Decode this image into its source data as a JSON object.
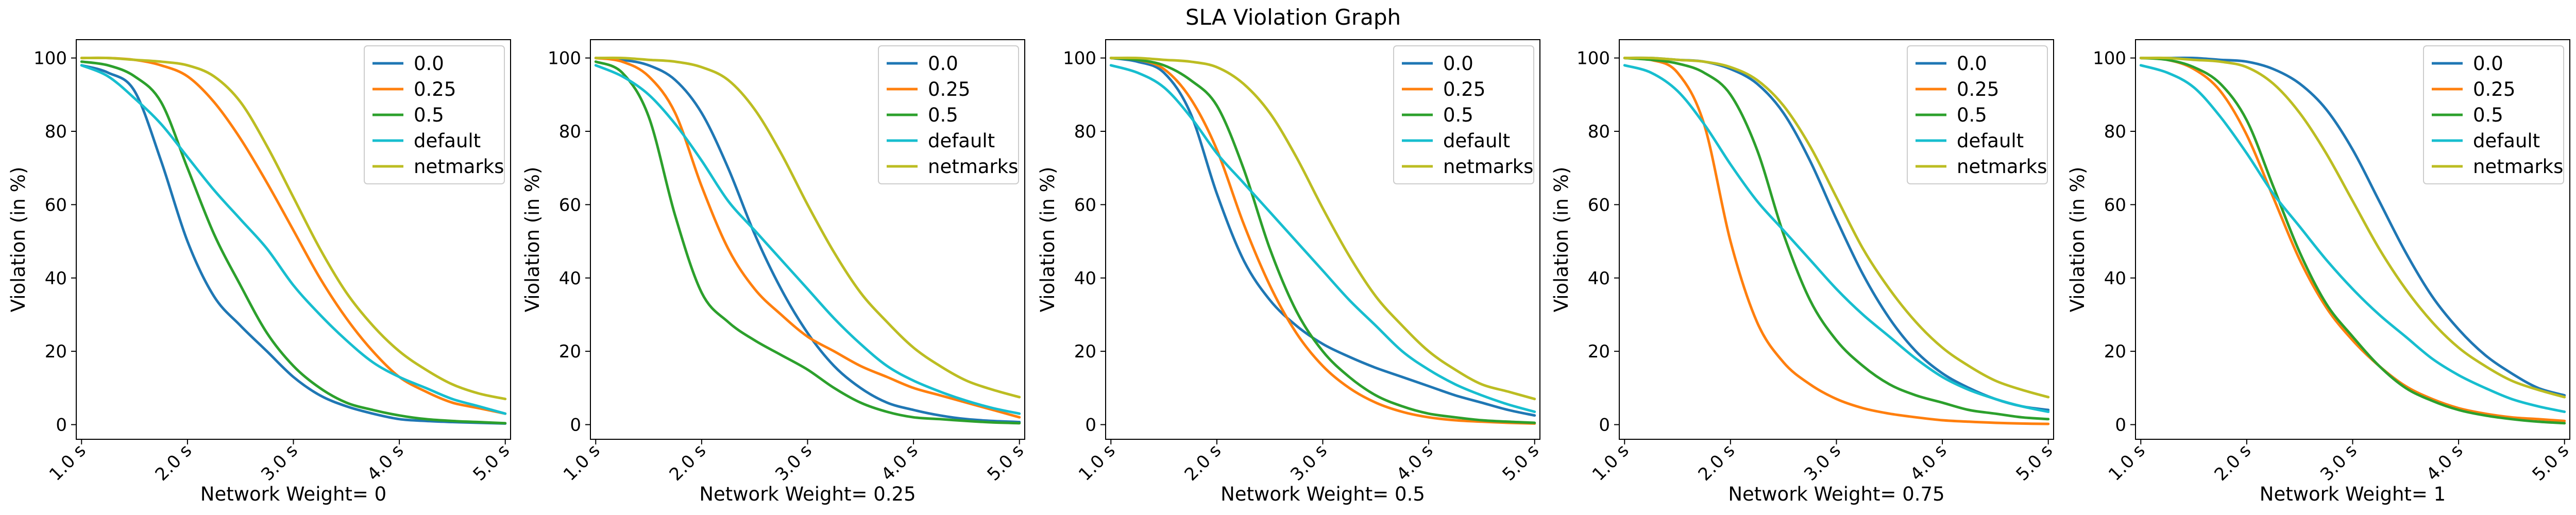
{
  "figure": {
    "title": "SLA Violation Graph"
  },
  "chart_data": [
    {
      "type": "line",
      "title": "",
      "xlabel": "Network Weight= 0",
      "ylabel": "Violation (in %)",
      "x": [
        1.0,
        1.25,
        1.5,
        1.75,
        2.0,
        2.25,
        2.5,
        2.75,
        3.0,
        3.25,
        3.5,
        3.75,
        4.0,
        4.25,
        4.5,
        4.75,
        5.0
      ],
      "xticks": [
        "1.0 s",
        "2.0 s",
        "3.0 s",
        "4.0 s",
        "5.0 s"
      ],
      "xtick_values": [
        1,
        2,
        3,
        4,
        5
      ],
      "yticks": [
        0,
        20,
        40,
        60,
        80,
        100
      ],
      "xlim": [
        0.95,
        5.05
      ],
      "ylim": [
        -4,
        105
      ],
      "legend": "top-right",
      "grid": false,
      "series": [
        {
          "name": "0.0",
          "color": "#1f77b4",
          "values": [
            98,
            96,
            91,
            72,
            50,
            35,
            27,
            20,
            13,
            8,
            5,
            3,
            1.5,
            1,
            0.7,
            0.5,
            0.3
          ]
        },
        {
          "name": "0.25",
          "color": "#ff7f0e",
          "values": [
            100,
            100,
            99.5,
            98,
            95,
            88,
            78,
            66,
            53,
            40,
            29,
            20,
            13,
            9,
            6,
            4.5,
            3
          ]
        },
        {
          "name": "0.5",
          "color": "#2ca02c",
          "values": [
            99,
            98,
            95,
            88,
            70,
            52,
            38,
            25,
            16,
            10,
            6,
            4,
            2.5,
            1.5,
            1,
            0.7,
            0.4
          ]
        },
        {
          "name": "default",
          "color": "#17becf",
          "values": [
            98,
            95,
            89,
            82,
            73,
            64,
            56,
            48,
            38,
            30,
            23,
            17,
            13,
            10,
            7,
            5,
            3
          ]
        },
        {
          "name": "netmarks",
          "color": "#bcbd22",
          "values": [
            100,
            100,
            99.5,
            99,
            98,
            95,
            88,
            76,
            62,
            48,
            36,
            27,
            20,
            15,
            11,
            8.5,
            7
          ]
        }
      ]
    },
    {
      "type": "line",
      "title": "",
      "xlabel": "Network Weight= 0.25",
      "ylabel": "Violation (in %)",
      "x": [
        1.0,
        1.25,
        1.5,
        1.75,
        2.0,
        2.25,
        2.5,
        2.75,
        3.0,
        3.25,
        3.5,
        3.75,
        4.0,
        4.25,
        4.5,
        4.75,
        5.0
      ],
      "xticks": [
        "1.0 s",
        "2.0 s",
        "3.0 s",
        "4.0 s",
        "5.0 s"
      ],
      "xtick_values": [
        1,
        2,
        3,
        4,
        5
      ],
      "yticks": [
        0,
        20,
        40,
        60,
        80,
        100
      ],
      "xlim": [
        0.95,
        5.05
      ],
      "ylim": [
        -4,
        105
      ],
      "legend": "top-right",
      "grid": false,
      "series": [
        {
          "name": "0.0",
          "color": "#1f77b4",
          "values": [
            100,
            99.5,
            98,
            94,
            85,
            70,
            52,
            37,
            25,
            16,
            10,
            6,
            4,
            2.5,
            1.5,
            1,
            0.7
          ]
        },
        {
          "name": "0.25",
          "color": "#ff7f0e",
          "values": [
            100,
            99,
            95,
            85,
            65,
            48,
            37,
            30,
            24,
            20,
            16,
            13,
            10,
            8,
            6,
            4,
            2
          ]
        },
        {
          "name": "0.5",
          "color": "#2ca02c",
          "values": [
            99,
            96,
            84,
            57,
            36,
            28,
            23,
            19,
            15,
            10,
            6,
            3.5,
            2,
            1.5,
            1,
            0.6,
            0.4
          ]
        },
        {
          "name": "default",
          "color": "#17becf",
          "values": [
            98,
            95,
            90,
            82,
            72,
            61,
            53,
            45,
            37,
            29,
            22,
            16,
            12,
            9,
            6.5,
            4.5,
            3
          ]
        },
        {
          "name": "netmarks",
          "color": "#bcbd22",
          "values": [
            100,
            100,
            99.5,
            99,
            97.5,
            94,
            86,
            74,
            60,
            47,
            36,
            28,
            21,
            16,
            12,
            9.5,
            7.5
          ]
        }
      ]
    },
    {
      "type": "line",
      "title": "",
      "xlabel": "Network Weight= 0.5",
      "ylabel": "Violation (in %)",
      "x": [
        1.0,
        1.25,
        1.5,
        1.75,
        2.0,
        2.25,
        2.5,
        2.75,
        3.0,
        3.25,
        3.5,
        3.75,
        4.0,
        4.25,
        4.5,
        4.75,
        5.0
      ],
      "xticks": [
        "1.0 s",
        "2.0 s",
        "3.0 s",
        "4.0 s",
        "5.0 s"
      ],
      "xtick_values": [
        1,
        2,
        3,
        4,
        5
      ],
      "yticks": [
        0,
        20,
        40,
        60,
        80,
        100
      ],
      "xlim": [
        0.95,
        5.05
      ],
      "ylim": [
        -4,
        105
      ],
      "legend": "top-right",
      "grid": false,
      "series": [
        {
          "name": "0.0",
          "color": "#1f77b4",
          "values": [
            100,
            99,
            96,
            85,
            63,
            45,
            34,
            27,
            22,
            18.5,
            15.5,
            13,
            10.5,
            8,
            6,
            4,
            2.5
          ]
        },
        {
          "name": "0.25",
          "color": "#ff7f0e",
          "values": [
            100,
            99.5,
            97,
            89,
            75,
            55,
            38,
            25,
            16,
            10,
            6,
            3.5,
            2,
            1.2,
            0.8,
            0.5,
            0.3
          ]
        },
        {
          "name": "0.5",
          "color": "#2ca02c",
          "values": [
            100,
            99.5,
            98,
            94,
            87,
            70,
            48,
            31,
            20,
            13,
            8,
            5,
            3,
            2,
            1.2,
            0.8,
            0.5
          ]
        },
        {
          "name": "default",
          "color": "#17becf",
          "values": [
            98,
            96,
            92,
            84,
            74,
            66,
            58,
            50,
            42,
            34,
            27,
            20,
            15,
            11,
            8,
            5.5,
            3.5
          ]
        },
        {
          "name": "netmarks",
          "color": "#bcbd22",
          "values": [
            100,
            100,
            99.5,
            99,
            97.5,
            93,
            85,
            73,
            59,
            46,
            35,
            27,
            20,
            15,
            11,
            9,
            7
          ]
        }
      ]
    },
    {
      "type": "line",
      "title": "",
      "xlabel": "Network Weight= 0.75",
      "ylabel": "Violation (in %)",
      "x": [
        1.0,
        1.25,
        1.5,
        1.75,
        2.0,
        2.25,
        2.5,
        2.75,
        3.0,
        3.25,
        3.5,
        3.75,
        4.0,
        4.25,
        4.5,
        4.75,
        5.0
      ],
      "xticks": [
        "1.0 s",
        "2.0 s",
        "3.0 s",
        "4.0 s",
        "5.0 s"
      ],
      "xtick_values": [
        1,
        2,
        3,
        4,
        5
      ],
      "yticks": [
        0,
        20,
        40,
        60,
        80,
        100
      ],
      "xlim": [
        0.95,
        5.05
      ],
      "ylim": [
        -4,
        105
      ],
      "legend": "top-right",
      "grid": false,
      "series": [
        {
          "name": "0.0",
          "color": "#1f77b4",
          "values": [
            100,
            100,
            99.5,
            99,
            97,
            93,
            85,
            72,
            56,
            41,
            29,
            20,
            14,
            10,
            7,
            5,
            4
          ]
        },
        {
          "name": "0.25",
          "color": "#ff7f0e",
          "values": [
            100,
            99.5,
            96,
            82,
            50,
            28,
            17,
            11,
            7,
            4.5,
            3,
            2,
            1.2,
            0.8,
            0.5,
            0.3,
            0.2
          ]
        },
        {
          "name": "0.5",
          "color": "#2ca02c",
          "values": [
            100,
            99.5,
            98.5,
            96,
            90,
            75,
            52,
            34,
            23,
            16,
            11,
            8,
            6,
            4,
            3,
            2,
            1.5
          ]
        },
        {
          "name": "default",
          "color": "#17becf",
          "values": [
            98,
            96,
            91,
            82,
            71,
            61,
            53,
            45,
            37,
            30,
            24,
            18,
            13,
            9.5,
            7,
            5,
            3.5
          ]
        },
        {
          "name": "netmarks",
          "color": "#bcbd22",
          "values": [
            100,
            100,
            99.5,
            99,
            97.5,
            94,
            87,
            76,
            62,
            48,
            37,
            28,
            21,
            16,
            12,
            9.5,
            7.5
          ]
        }
      ]
    },
    {
      "type": "line",
      "title": "",
      "xlabel": "Network Weight= 1",
      "ylabel": "Violation (in %)",
      "x": [
        1.0,
        1.25,
        1.5,
        1.75,
        2.0,
        2.25,
        2.5,
        2.75,
        3.0,
        3.25,
        3.5,
        3.75,
        4.0,
        4.25,
        4.5,
        4.75,
        5.0
      ],
      "xticks": [
        "1.0 s",
        "2.0 s",
        "3.0 s",
        "4.0 s",
        "5.0 s"
      ],
      "xtick_values": [
        1,
        2,
        3,
        4,
        5
      ],
      "yticks": [
        0,
        20,
        40,
        60,
        80,
        100
      ],
      "xlim": [
        0.95,
        5.05
      ],
      "ylim": [
        -4,
        105
      ],
      "legend": "top-right",
      "grid": false,
      "series": [
        {
          "name": "0.0",
          "color": "#1f77b4",
          "values": [
            100,
            100,
            100,
            99.5,
            99,
            97,
            93,
            86,
            75,
            61,
            47,
            35,
            26,
            19,
            14,
            10,
            8
          ]
        },
        {
          "name": "0.25",
          "color": "#ff7f0e",
          "values": [
            100,
            99.5,
            97,
            91,
            79,
            62,
            45,
            32,
            23,
            16,
            10.5,
            7,
            4.5,
            3,
            2,
            1.5,
            1
          ]
        },
        {
          "name": "0.5",
          "color": "#2ca02c",
          "values": [
            100,
            99.5,
            97.5,
            93,
            83,
            65,
            47,
            33,
            24,
            16,
            10,
            6.5,
            4,
            2.5,
            1.5,
            0.8,
            0.4
          ]
        },
        {
          "name": "default",
          "color": "#17becf",
          "values": [
            98,
            96,
            92,
            84,
            74,
            63,
            54,
            45,
            37,
            30,
            24,
            18,
            13.5,
            10,
            7,
            5,
            3.5
          ]
        },
        {
          "name": "netmarks",
          "color": "#bcbd22",
          "values": [
            100,
            100,
            99.5,
            99,
            97.5,
            93,
            85,
            74,
            61,
            48,
            37,
            28,
            21,
            16,
            12,
            9.5,
            7.5
          ]
        }
      ]
    }
  ]
}
